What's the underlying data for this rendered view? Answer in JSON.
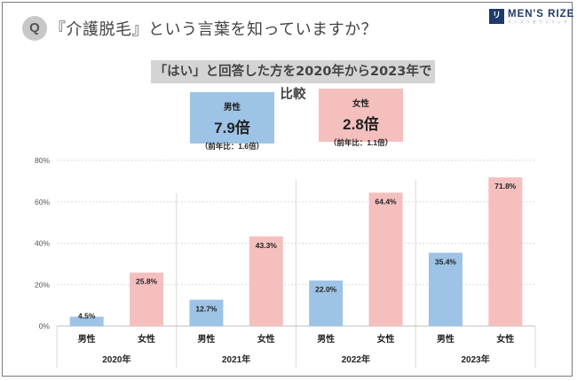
{
  "header": {
    "q_badge": "Q",
    "question": "『介護脱毛』という言葉を知っていますか？",
    "logo_mark": "リゼ",
    "logo_name": "MEN'S RIZE",
    "logo_sub": "メンズリゼクリニック"
  },
  "banner": "「はい」と回答した方を2020年から2023年で比較",
  "summary": {
    "male": {
      "label": "男性",
      "value": "7.9倍",
      "sub": "（前年比：1.6倍）",
      "color": "#9dc3e6"
    },
    "female": {
      "label": "女性",
      "value": "2.8倍",
      "sub": "（前年比：1.1倍）",
      "color": "#f5bfbe"
    }
  },
  "chart_data": {
    "type": "bar",
    "title": "「はい」と回答した方を2020年から2023年で比較",
    "xlabel": "",
    "ylabel": "",
    "ylim": [
      0,
      80
    ],
    "yticks": [
      "0%",
      "20%",
      "40%",
      "60%",
      "80%"
    ],
    "grid": true,
    "groups": [
      "2020年",
      "2021年",
      "2022年",
      "2023年"
    ],
    "categories": [
      "男性",
      "女性"
    ],
    "series": [
      {
        "name": "男性",
        "color": "#9dc3e6",
        "values": [
          4.5,
          12.7,
          22.0,
          35.4
        ],
        "labels": [
          "4.5%",
          "12.7%",
          "22.0%",
          "35.4%"
        ]
      },
      {
        "name": "女性",
        "color": "#f5bfbe",
        "values": [
          25.8,
          43.3,
          64.4,
          71.8
        ],
        "labels": [
          "25.8%",
          "43.3%",
          "64.4%",
          "71.8%"
        ]
      }
    ]
  }
}
